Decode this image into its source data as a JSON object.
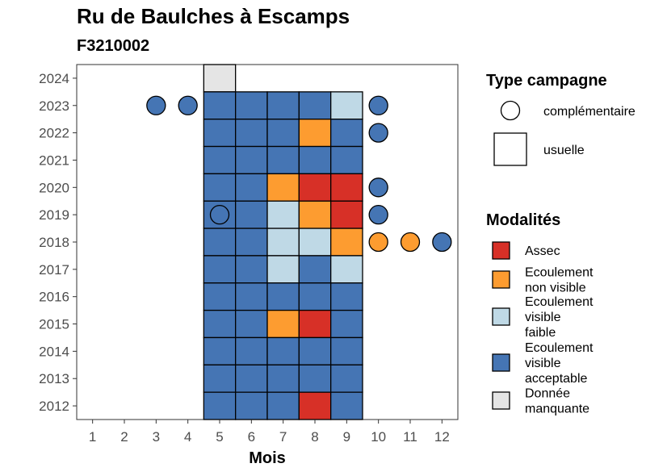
{
  "chart_data": {
    "type": "heatmap",
    "title": "Ru de Baulches à Escamps",
    "subtitle": "F3210002",
    "xlabel": "Mois",
    "ylabel": "",
    "x_ticks": [
      "1",
      "2",
      "3",
      "4",
      "5",
      "6",
      "7",
      "8",
      "9",
      "10",
      "11",
      "12"
    ],
    "y_ticks": [
      "2012",
      "2013",
      "2014",
      "2015",
      "2016",
      "2017",
      "2018",
      "2019",
      "2020",
      "2021",
      "2022",
      "2023",
      "2024"
    ],
    "xlim": [
      0.5,
      12.5
    ],
    "ylim": [
      2011.5,
      2024.5
    ],
    "modalites": {
      "assec": {
        "label": "Assec",
        "color": "#d73027"
      },
      "non_visible": {
        "label": "Ecoulement\nnon visible",
        "color": "#fd9c30"
      },
      "faible": {
        "label": "Ecoulement\nvisible\nfaible",
        "color": "#bfd9e6"
      },
      "acceptable": {
        "label": "Ecoulement\nvisible\nacceptable",
        "color": "#4575b4"
      },
      "manquante": {
        "label": "Donnée\nmanquante",
        "color": "#e5e5e5"
      }
    },
    "legend_modalites_order": [
      "assec",
      "non_visible",
      "faible",
      "acceptable",
      "manquante"
    ],
    "legend_type_title": "Type campagne",
    "legend_type": [
      {
        "key": "complementaire",
        "label": "complémentaire",
        "shape": "circle"
      },
      {
        "key": "usuelle",
        "label": "usuelle",
        "shape": "square"
      }
    ],
    "legend_modalites_title": "Modalités",
    "legend_placement": "right",
    "grid": false,
    "usuelle": [
      {
        "year": 2024,
        "month": 5,
        "m": "manquante"
      },
      {
        "year": 2023,
        "month": 5,
        "m": "acceptable"
      },
      {
        "year": 2023,
        "month": 6,
        "m": "acceptable"
      },
      {
        "year": 2023,
        "month": 7,
        "m": "acceptable"
      },
      {
        "year": 2023,
        "month": 8,
        "m": "acceptable"
      },
      {
        "year": 2023,
        "month": 9,
        "m": "faible"
      },
      {
        "year": 2022,
        "month": 5,
        "m": "acceptable"
      },
      {
        "year": 2022,
        "month": 6,
        "m": "acceptable"
      },
      {
        "year": 2022,
        "month": 7,
        "m": "acceptable"
      },
      {
        "year": 2022,
        "month": 8,
        "m": "non_visible"
      },
      {
        "year": 2022,
        "month": 9,
        "m": "acceptable"
      },
      {
        "year": 2021,
        "month": 5,
        "m": "acceptable"
      },
      {
        "year": 2021,
        "month": 6,
        "m": "acceptable"
      },
      {
        "year": 2021,
        "month": 7,
        "m": "acceptable"
      },
      {
        "year": 2021,
        "month": 8,
        "m": "acceptable"
      },
      {
        "year": 2021,
        "month": 9,
        "m": "acceptable"
      },
      {
        "year": 2020,
        "month": 5,
        "m": "acceptable"
      },
      {
        "year": 2020,
        "month": 6,
        "m": "acceptable"
      },
      {
        "year": 2020,
        "month": 7,
        "m": "non_visible"
      },
      {
        "year": 2020,
        "month": 8,
        "m": "assec"
      },
      {
        "year": 2020,
        "month": 9,
        "m": "assec"
      },
      {
        "year": 2019,
        "month": 5,
        "m": "acceptable"
      },
      {
        "year": 2019,
        "month": 6,
        "m": "acceptable"
      },
      {
        "year": 2019,
        "month": 7,
        "m": "faible"
      },
      {
        "year": 2019,
        "month": 8,
        "m": "non_visible"
      },
      {
        "year": 2019,
        "month": 9,
        "m": "assec"
      },
      {
        "year": 2018,
        "month": 5,
        "m": "acceptable"
      },
      {
        "year": 2018,
        "month": 6,
        "m": "acceptable"
      },
      {
        "year": 2018,
        "month": 7,
        "m": "faible"
      },
      {
        "year": 2018,
        "month": 8,
        "m": "faible"
      },
      {
        "year": 2018,
        "month": 9,
        "m": "non_visible"
      },
      {
        "year": 2017,
        "month": 5,
        "m": "acceptable"
      },
      {
        "year": 2017,
        "month": 6,
        "m": "acceptable"
      },
      {
        "year": 2017,
        "month": 7,
        "m": "faible"
      },
      {
        "year": 2017,
        "month": 8,
        "m": "acceptable"
      },
      {
        "year": 2017,
        "month": 9,
        "m": "faible"
      },
      {
        "year": 2016,
        "month": 5,
        "m": "acceptable"
      },
      {
        "year": 2016,
        "month": 6,
        "m": "acceptable"
      },
      {
        "year": 2016,
        "month": 7,
        "m": "acceptable"
      },
      {
        "year": 2016,
        "month": 8,
        "m": "acceptable"
      },
      {
        "year": 2016,
        "month": 9,
        "m": "acceptable"
      },
      {
        "year": 2015,
        "month": 5,
        "m": "acceptable"
      },
      {
        "year": 2015,
        "month": 6,
        "m": "acceptable"
      },
      {
        "year": 2015,
        "month": 7,
        "m": "non_visible"
      },
      {
        "year": 2015,
        "month": 8,
        "m": "assec"
      },
      {
        "year": 2015,
        "month": 9,
        "m": "acceptable"
      },
      {
        "year": 2014,
        "month": 5,
        "m": "acceptable"
      },
      {
        "year": 2014,
        "month": 6,
        "m": "acceptable"
      },
      {
        "year": 2014,
        "month": 7,
        "m": "acceptable"
      },
      {
        "year": 2014,
        "month": 8,
        "m": "acceptable"
      },
      {
        "year": 2014,
        "month": 9,
        "m": "acceptable"
      },
      {
        "year": 2013,
        "month": 5,
        "m": "acceptable"
      },
      {
        "year": 2013,
        "month": 6,
        "m": "acceptable"
      },
      {
        "year": 2013,
        "month": 7,
        "m": "acceptable"
      },
      {
        "year": 2013,
        "month": 8,
        "m": "acceptable"
      },
      {
        "year": 2013,
        "month": 9,
        "m": "acceptable"
      },
      {
        "year": 2012,
        "month": 5,
        "m": "acceptable"
      },
      {
        "year": 2012,
        "month": 6,
        "m": "acceptable"
      },
      {
        "year": 2012,
        "month": 7,
        "m": "acceptable"
      },
      {
        "year": 2012,
        "month": 8,
        "m": "assec"
      },
      {
        "year": 2012,
        "month": 9,
        "m": "acceptable"
      }
    ],
    "complementaire": [
      {
        "year": 2023,
        "month": 3,
        "m": "acceptable"
      },
      {
        "year": 2023,
        "month": 4,
        "m": "acceptable"
      },
      {
        "year": 2023,
        "month": 10,
        "m": "acceptable"
      },
      {
        "year": 2022,
        "month": 10,
        "m": "acceptable"
      },
      {
        "year": 2020,
        "month": 10,
        "m": "acceptable"
      },
      {
        "year": 2019,
        "month": 5,
        "m": "acceptable"
      },
      {
        "year": 2019,
        "month": 10,
        "m": "acceptable"
      },
      {
        "year": 2018,
        "month": 10,
        "m": "non_visible"
      },
      {
        "year": 2018,
        "month": 11,
        "m": "non_visible"
      },
      {
        "year": 2018,
        "month": 12,
        "m": "acceptable"
      }
    ]
  }
}
